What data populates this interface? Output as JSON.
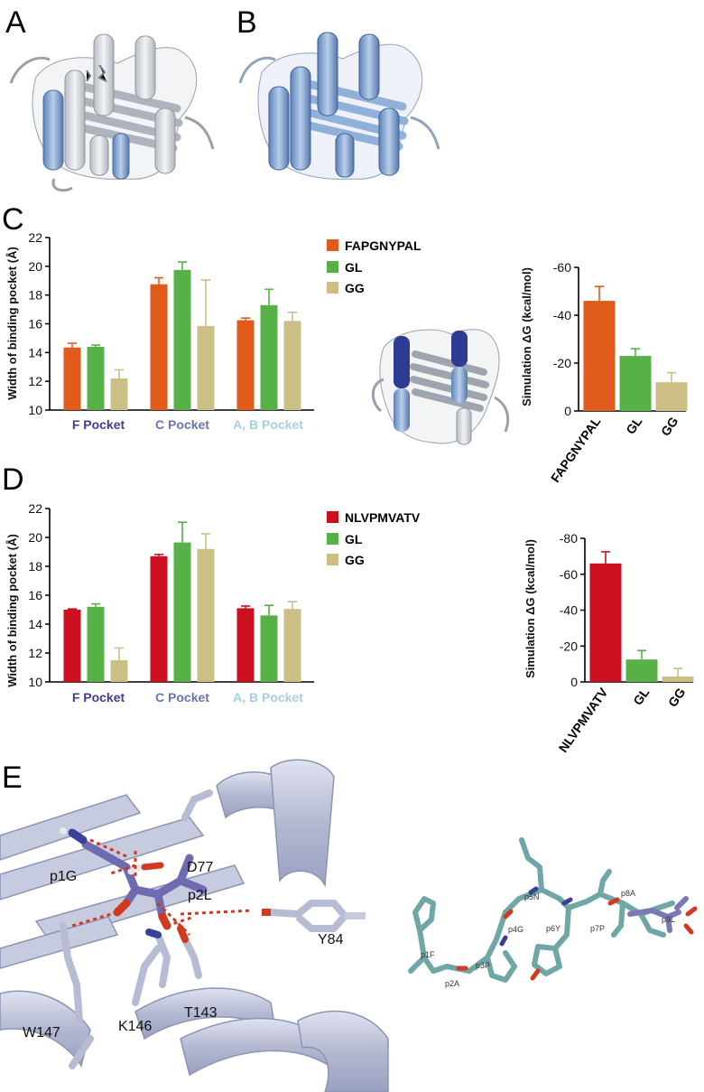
{
  "panel_labels": {
    "A": "A",
    "B": "B",
    "C": "C",
    "D": "D",
    "E": "E"
  },
  "colors": {
    "peptide_C": "#e05a1b",
    "peptide_D": "#cc0f1f",
    "GL": "#58b146",
    "GG": "#cbbf86",
    "F_pocket_label": "#3f3f8f",
    "C_pocket_label": "#6b74b4",
    "AB_pocket_label": "#a9cde4",
    "ribbon_gray": "#d3d7dd",
    "ribbon_blue": "#8fb0d9",
    "ribbon_dark": "#2d3b92",
    "lavender": "#c6cbe0",
    "peptide_stick": "#6e6bb0",
    "teal_stick": "#6fa6a6"
  },
  "pocket_axis_label": "Width of binding pocket (Å)",
  "simulation_axis_label": "Simulation ΔG (kcal/mol)",
  "structure_labels": {
    "D77": "D77",
    "p1G": "p1G",
    "p2L": "p2L",
    "Y84": "Y84",
    "W147": "W147",
    "K146": "K146",
    "T143": "T143"
  },
  "peptide_trace_labels": [
    "p1F",
    "p2A",
    "p3P",
    "p4G",
    "p5N",
    "p6Y",
    "p7P",
    "p8A",
    "p9L"
  ],
  "chart_data": [
    {
      "id": "C-width",
      "type": "bar",
      "categories": [
        "F Pocket",
        "C Pocket",
        "A, B Pocket"
      ],
      "ylabel": "Width of binding pocket (Å)",
      "ylim": [
        10,
        22
      ],
      "yticks": [
        10,
        12,
        14,
        16,
        18,
        20,
        22
      ],
      "legend_position": "top-right",
      "series": [
        {
          "name": "FAPGNYPAL",
          "color": "#e05a1b",
          "values": [
            14.35,
            18.75,
            16.25
          ],
          "errors": [
            0.3,
            0.45,
            0.15
          ]
        },
        {
          "name": "GL",
          "color": "#58b146",
          "values": [
            14.4,
            19.75,
            17.3
          ],
          "errors": [
            0.12,
            0.55,
            1.1
          ]
        },
        {
          "name": "GG",
          "color": "#cbbf86",
          "values": [
            12.2,
            15.85,
            16.2
          ],
          "errors": [
            0.6,
            3.2,
            0.6
          ]
        }
      ]
    },
    {
      "id": "C-dG",
      "type": "bar",
      "categories": [
        "FAPGNYPAL",
        "GL",
        "GG"
      ],
      "ylabel": "Simulation ΔG (kcal/mol)",
      "ylim": [
        0,
        -60
      ],
      "yticks": [
        0,
        -20,
        -40,
        -60
      ],
      "values": [
        -46,
        -23,
        -12
      ],
      "errors": [
        6,
        3,
        4
      ],
      "colors": [
        "#e05a1b",
        "#58b146",
        "#cbbf86"
      ]
    },
    {
      "id": "D-width",
      "type": "bar",
      "categories": [
        "F Pocket",
        "C Pocket",
        "A, B Pocket"
      ],
      "ylabel": "Width of binding pocket (Å)",
      "ylim": [
        10,
        22
      ],
      "yticks": [
        10,
        12,
        14,
        16,
        18,
        20,
        22
      ],
      "legend_position": "top-right",
      "series": [
        {
          "name": "NLVPMVATV",
          "color": "#cc0f1f",
          "values": [
            15.0,
            18.7,
            15.1
          ],
          "errors": [
            0.05,
            0.12,
            0.15
          ]
        },
        {
          "name": "GL",
          "color": "#58b146",
          "values": [
            15.2,
            19.65,
            14.6
          ],
          "errors": [
            0.2,
            1.4,
            0.7
          ]
        },
        {
          "name": "GG",
          "color": "#cbbf86",
          "values": [
            11.5,
            19.2,
            15.05
          ],
          "errors": [
            0.85,
            1.05,
            0.5
          ]
        }
      ]
    },
    {
      "id": "D-dG",
      "type": "bar",
      "categories": [
        "NLVPMVATV",
        "GL",
        "GG"
      ],
      "ylabel": "Simulation ΔG (kcal/mol)",
      "ylim": [
        0,
        -80
      ],
      "yticks": [
        0,
        -20,
        -40,
        -60,
        -80
      ],
      "values": [
        -66,
        -12.5,
        -3
      ],
      "errors": [
        6.5,
        5,
        4.5
      ],
      "colors": [
        "#cc0f1f",
        "#58b146",
        "#cbbf86"
      ]
    }
  ]
}
